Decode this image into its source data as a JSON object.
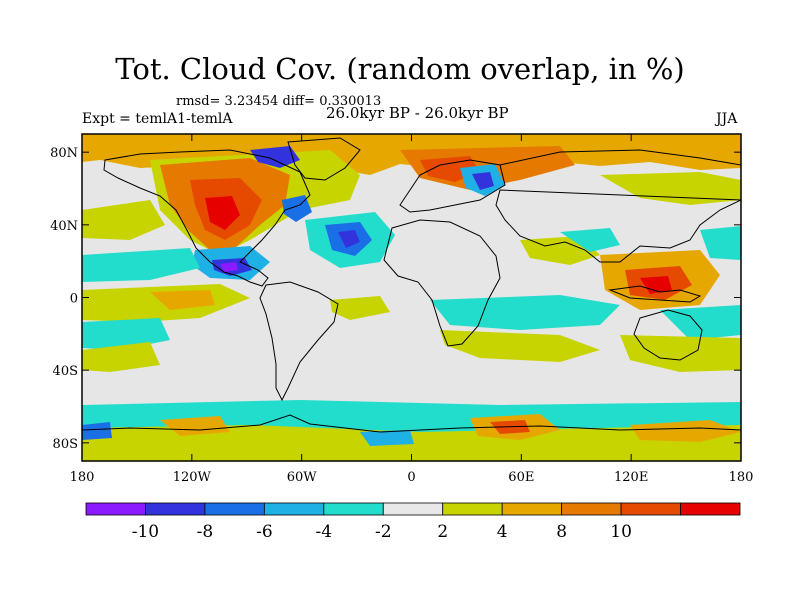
{
  "title": "Tot. Cloud Cov. (random overlap, in %)",
  "stats": "rmsd= 3.23454 diff= 0.330013",
  "left_label": "Expt = temlA1-temlA",
  "center_label": "26.0kyr BP - 26.0kyr BP",
  "right_label": "JJA",
  "map": {
    "projection": "cylindrical-equidistant",
    "lon_range": [
      -180,
      180
    ],
    "lat_range": [
      -90,
      90
    ],
    "x_ticks": [
      {
        "lon": -180,
        "label": "180"
      },
      {
        "lon": -120,
        "label": "120W"
      },
      {
        "lon": -60,
        "label": "60W"
      },
      {
        "lon": 0,
        "label": "0"
      },
      {
        "lon": 60,
        "label": "60E"
      },
      {
        "lon": 120,
        "label": "120E"
      },
      {
        "lon": 180,
        "label": "180"
      }
    ],
    "y_ticks": [
      {
        "lat": 80,
        "label": "80N"
      },
      {
        "lat": 40,
        "label": "40N"
      },
      {
        "lat": 0,
        "label": "0"
      },
      {
        "lat": -40,
        "label": "40S"
      },
      {
        "lat": -80,
        "label": "80S"
      }
    ],
    "background_color": "#e6e6e6"
  },
  "colorbar": {
    "colors": [
      "#8c1aff",
      "#3333dd",
      "#1a6ee6",
      "#1fb0e6",
      "#22ddcc",
      "#e8e8e8",
      "#c8d400",
      "#e6a800",
      "#e67a00",
      "#e64a00",
      "#e60000"
    ],
    "labels": [
      "-10",
      "-8",
      "-6",
      "-4",
      "-2",
      "2",
      "4",
      "8",
      "10"
    ]
  }
}
